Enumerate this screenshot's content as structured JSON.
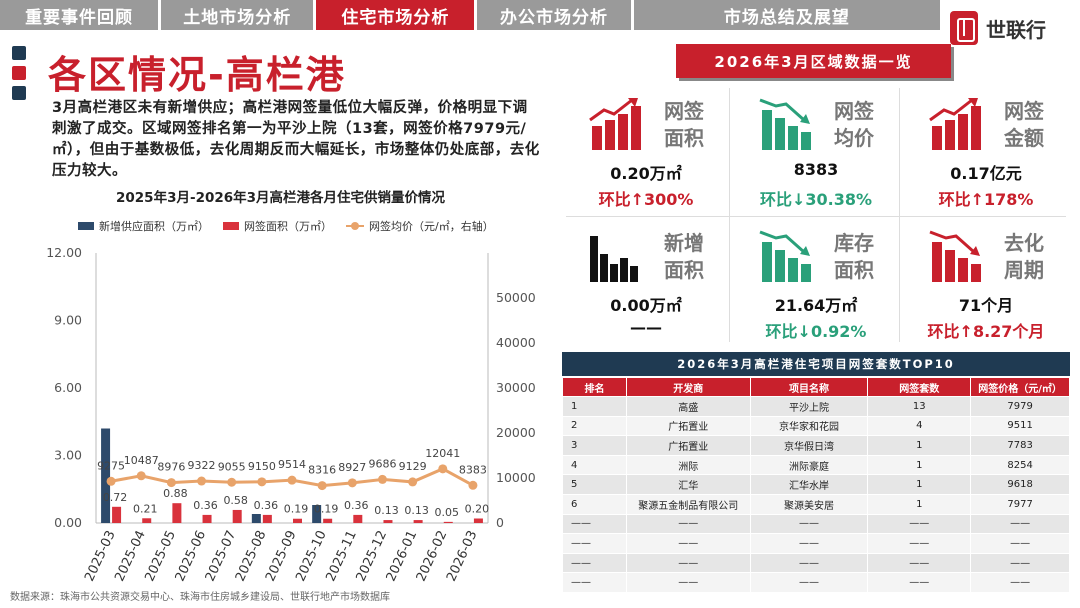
{
  "nav": {
    "tabs": [
      {
        "label": "重要事件回顾",
        "active": false
      },
      {
        "label": "土地市场分析",
        "active": false
      },
      {
        "label": "住宅市场分析",
        "active": true
      },
      {
        "label": "办公市场分析",
        "active": false
      },
      {
        "label": "市场总结及展望",
        "active": false
      }
    ]
  },
  "brand": {
    "name": "世联行",
    "accent": "#c8202c",
    "navy": "#1f3a52"
  },
  "header": {
    "title": "各区情况-高栏港"
  },
  "description": "3月高栏港区未有新增供应；高栏港网签量低位大幅反弹，价格明显下调刺激了成交。区域网签排名第一为平沙上院（13套，网签价格7979元/㎡），但由于基数极低，去化周期反而大幅延长，市场整体仍处底部，去化压力较大。",
  "chart_data": {
    "type": "bar",
    "title": "2025年3月-2026年3月高栏港各月住宅供销量价情况",
    "categories": [
      "2025-03",
      "2025-04",
      "2025-05",
      "2025-06",
      "2025-07",
      "2025-08",
      "2025-09",
      "2025-10",
      "2025-11",
      "2025-12",
      "2026-01",
      "2026-02",
      "2026-03"
    ],
    "series": [
      {
        "name": "新增供应面积（万㎡）",
        "type": "bar",
        "axis": "left",
        "color": "#2d4a6b",
        "values": [
          4.2,
          0,
          0,
          0,
          0,
          0.4,
          0,
          0.8,
          0,
          0,
          0,
          0,
          0
        ]
      },
      {
        "name": "网签面积（万㎡）",
        "type": "bar",
        "axis": "left",
        "color": "#d9323c",
        "values": [
          0.72,
          0.21,
          0.88,
          0.36,
          0.58,
          0.36,
          0.19,
          0.19,
          0.36,
          0.13,
          0.13,
          0.05,
          0.2
        ],
        "labels": [
          "0.72",
          "0.21",
          "0.88",
          "0.36",
          "0.58",
          "0.36",
          "0.19",
          "0.19",
          "0.36",
          "0.13",
          "0.13",
          "0.05",
          "0.20"
        ]
      },
      {
        "name": "网签均价（元/㎡，右轴）",
        "type": "line",
        "axis": "right",
        "color": "#e8a36a",
        "values": [
          9275,
          10487,
          8976,
          9322,
          9055,
          9150,
          9514,
          8316,
          8927,
          9686,
          9129,
          12041,
          8383
        ],
        "labels": [
          "9275",
          "10487",
          "8976",
          "9322",
          "9055",
          "9150",
          "9514",
          "8316",
          "8927",
          "9686",
          "9129",
          "12041",
          "8383"
        ]
      }
    ],
    "left_axis": {
      "ylim": [
        0,
        12
      ],
      "ticks": [
        "0.00",
        "3.00",
        "6.00",
        "9.00",
        "12.00"
      ]
    },
    "right_axis": {
      "ylim": [
        0,
        60000
      ],
      "ticks": [
        "0",
        "10000",
        "20000",
        "30000",
        "40000",
        "50000"
      ]
    },
    "grid": false,
    "legend": "top"
  },
  "source": "数据来源：珠海市公共资源交易中心、珠海市住房城乡建设局、世联行地产市场数据库",
  "panel": {
    "title": "2026年3月区域数据一览",
    "tiles": [
      {
        "label_l1": "网签",
        "label_l2": "面积",
        "value": "0.20万㎡",
        "change": "环比↑300%",
        "dir": "up",
        "icon": "bar-chart-up-icon",
        "color": "#c8202c"
      },
      {
        "label_l1": "网签",
        "label_l2": "均价",
        "value": "8383",
        "change": "环比↓30.38%",
        "dir": "down",
        "icon": "bar-chart-down-icon",
        "color": "#2aa07a"
      },
      {
        "label_l1": "网签",
        "label_l2": "金额",
        "value": "0.17亿元",
        "change": "环比↑178%",
        "dir": "up",
        "icon": "bar-chart-up-icon",
        "color": "#c8202c"
      },
      {
        "label_l1": "新增",
        "label_l2": "面积",
        "value": "0.00万㎡",
        "change": "——",
        "dir": "flat",
        "icon": "bar-chart-icon",
        "color": "#111111"
      },
      {
        "label_l1": "库存",
        "label_l2": "面积",
        "value": "21.64万㎡",
        "change": "环比↓0.92%",
        "dir": "down",
        "icon": "bar-chart-down-icon",
        "color": "#2aa07a"
      },
      {
        "label_l1": "去化",
        "label_l2": "周期",
        "value": "71个月",
        "change": "环比↑8.27个月",
        "dir": "up",
        "icon": "bar-chart-down-icon",
        "color": "#c8202c"
      }
    ]
  },
  "table": {
    "title": "2026年3月高栏港住宅项目网签套数TOP10",
    "headers": [
      "排名",
      "开发商",
      "项目名称",
      "网签套数",
      "网签价格（元/㎡）"
    ],
    "rows": [
      [
        "1",
        "高盛",
        "平沙上院",
        "13",
        "7979"
      ],
      [
        "2",
        "广拓置业",
        "京华家和花园",
        "4",
        "9511"
      ],
      [
        "3",
        "广拓置业",
        "京华假日湾",
        "1",
        "7783"
      ],
      [
        "4",
        "洲际",
        "洲际豪庭",
        "1",
        "8254"
      ],
      [
        "5",
        "汇华",
        "汇华水岸",
        "1",
        "9618"
      ],
      [
        "6",
        "聚源五金制品有限公司",
        "聚源美安居",
        "1",
        "7977"
      ],
      [
        "——",
        "——",
        "——",
        "——",
        "——"
      ],
      [
        "——",
        "——",
        "——",
        "——",
        "——"
      ],
      [
        "——",
        "——",
        "——",
        "——",
        "——"
      ],
      [
        "——",
        "——",
        "——",
        "——",
        "——"
      ]
    ]
  }
}
